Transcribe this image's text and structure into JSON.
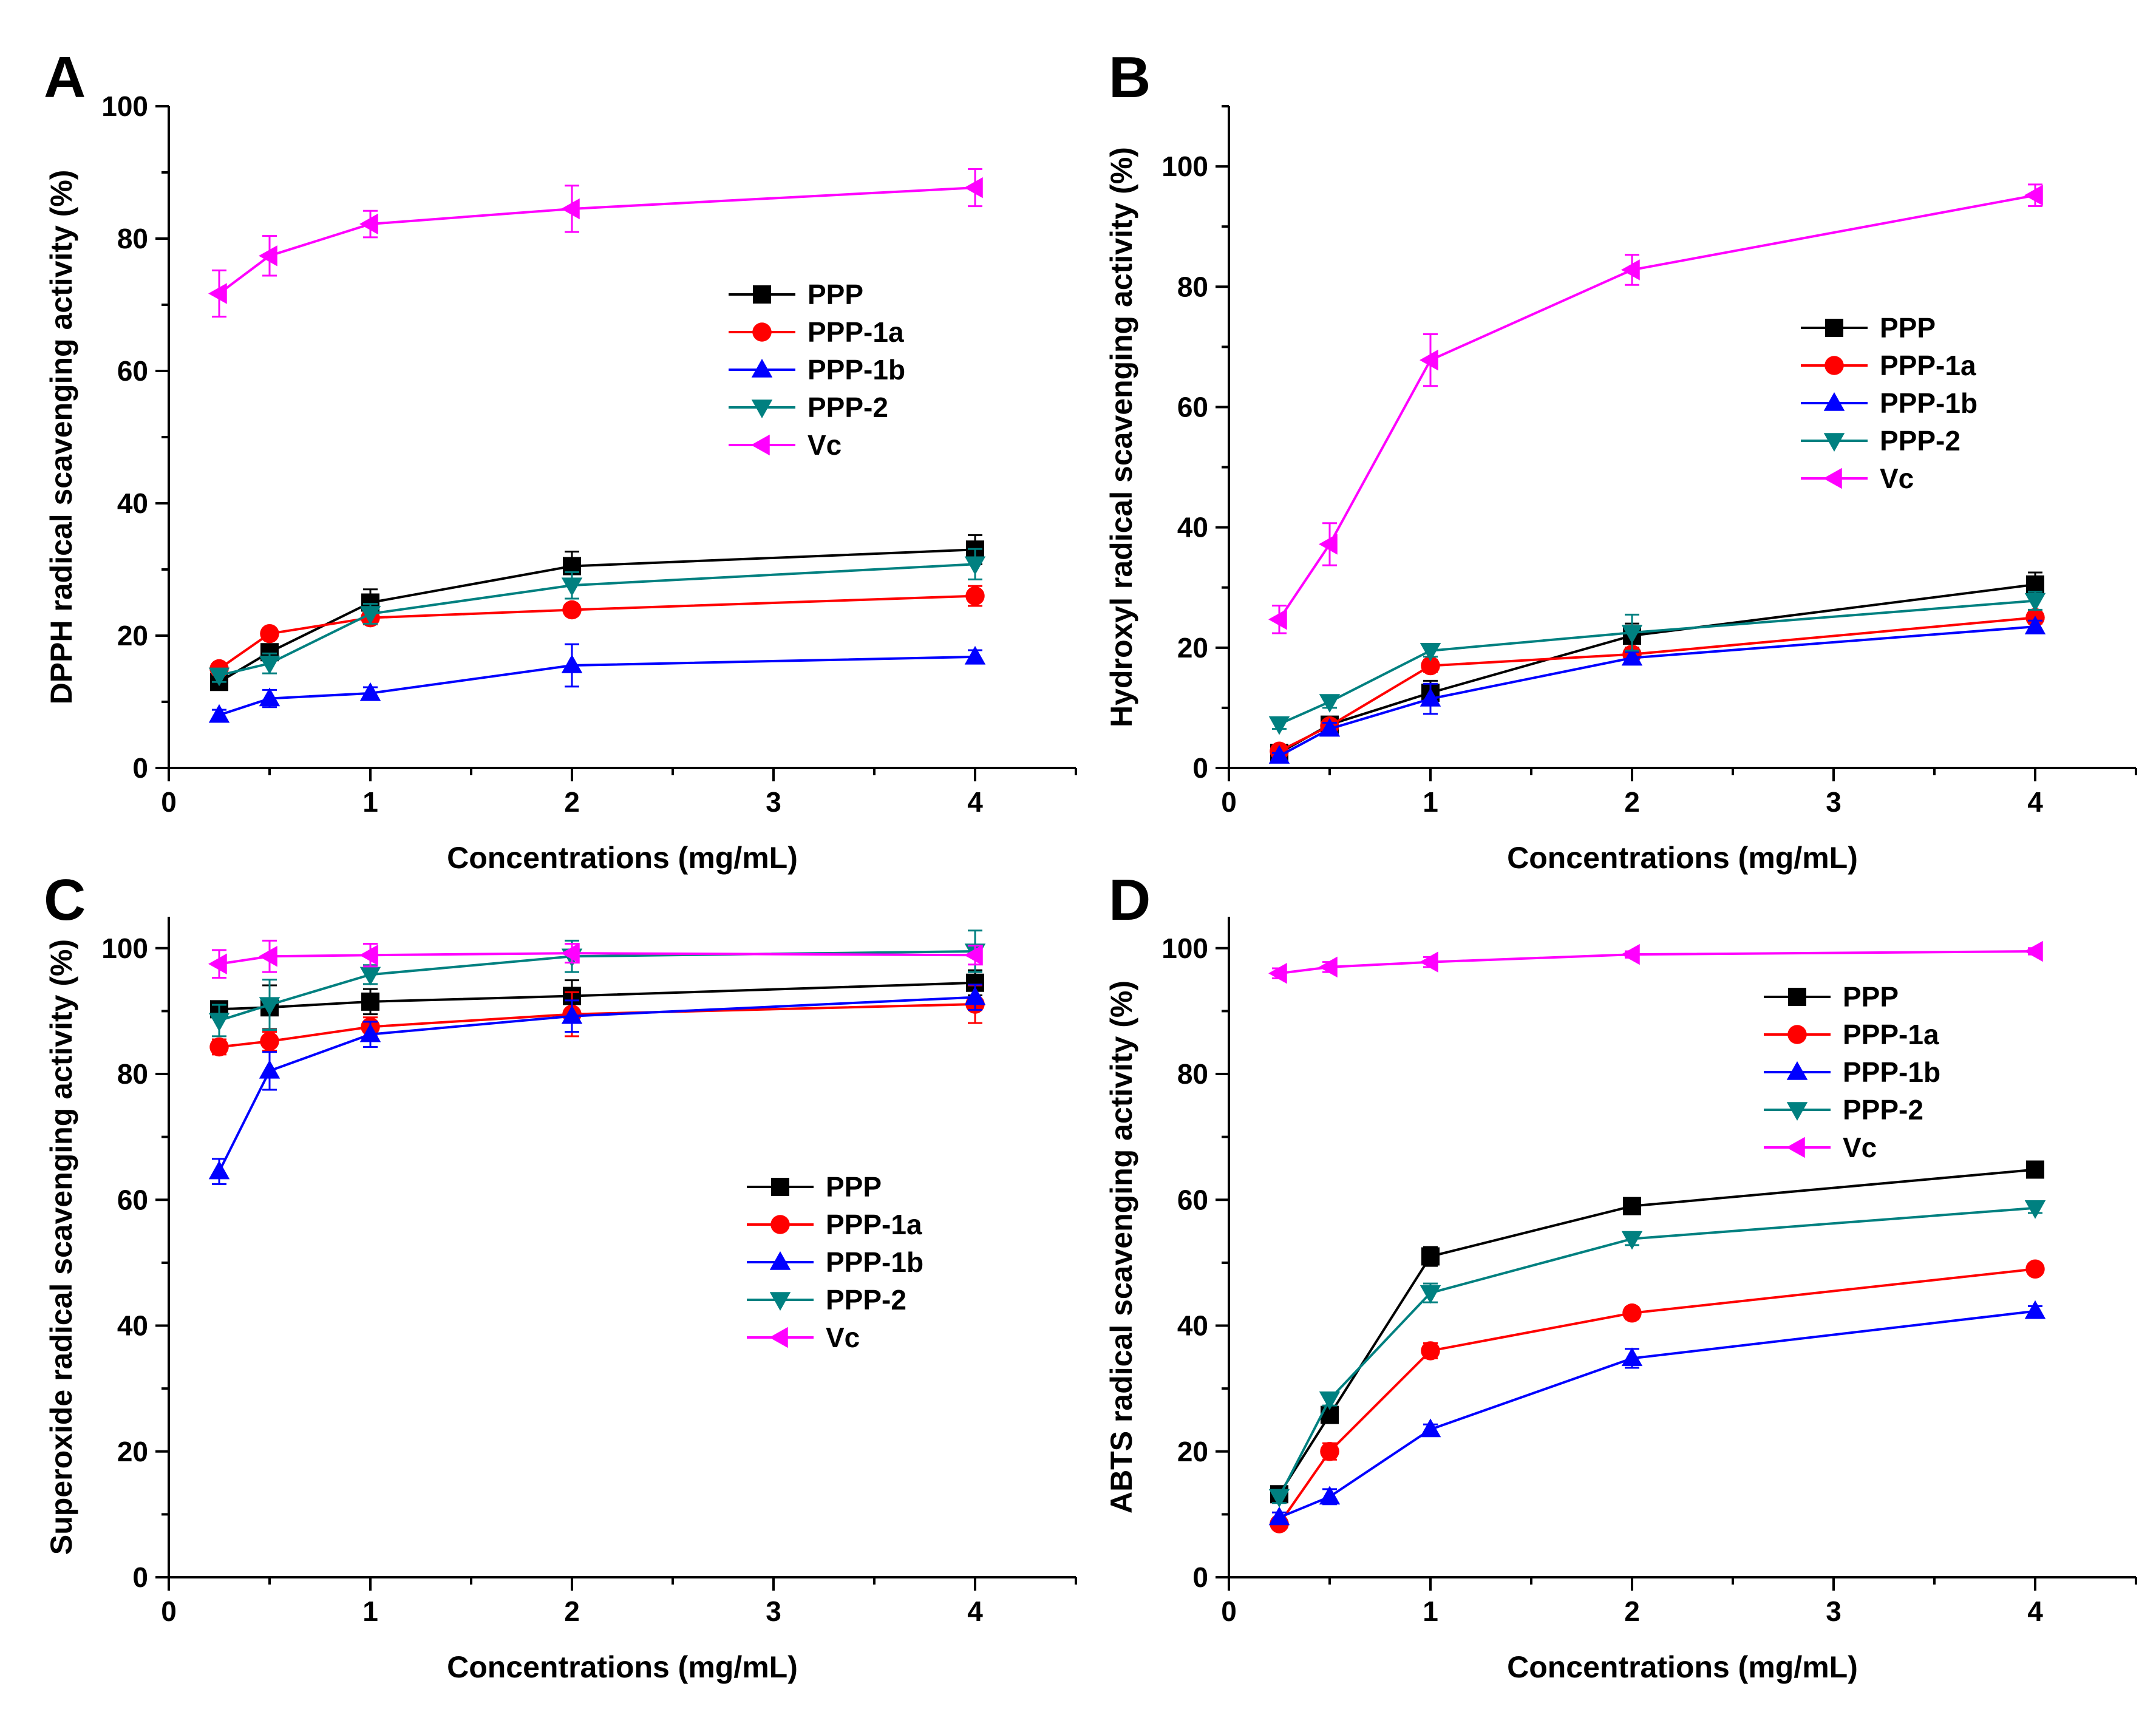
{
  "chart_data": [
    {
      "panel": "A",
      "type": "line",
      "xlabel": "Concentrations (mg/mL)",
      "ylabel": "DPPH radical scavenging activity (%)",
      "xlim": [
        0,
        4.5
      ],
      "ylim": [
        0,
        100
      ],
      "xticks": [
        0,
        1,
        2,
        3,
        4
      ],
      "yticks": [
        0,
        20,
        40,
        60,
        80,
        100
      ],
      "x": [
        0.25,
        0.5,
        1,
        2,
        4
      ],
      "legend": "center-right",
      "series": [
        {
          "name": "PPP",
          "color": "#000000",
          "marker": "square",
          "values": [
            13.0,
            17.5,
            25.0,
            30.5,
            33.0
          ],
          "errors": [
            1.0,
            1.2,
            2.0,
            2.2,
            2.2
          ]
        },
        {
          "name": "PPP-1a",
          "color": "#ff0000",
          "marker": "circle",
          "values": [
            15.0,
            20.3,
            22.7,
            23.9,
            26.0
          ],
          "errors": [
            0.8,
            0.8,
            1.0,
            0.8,
            1.5
          ]
        },
        {
          "name": "PPP-1b",
          "color": "#0000ff",
          "marker": "triangle-up",
          "values": [
            8.0,
            10.5,
            11.3,
            15.5,
            16.8
          ],
          "errors": [
            0.8,
            1.3,
            0.9,
            3.2,
            1.0
          ]
        },
        {
          "name": "PPP-2",
          "color": "#008080",
          "marker": "triangle-down",
          "values": [
            14.0,
            15.8,
            23.3,
            27.6,
            30.8
          ],
          "errors": [
            1.0,
            1.5,
            1.5,
            2.0,
            2.3
          ]
        },
        {
          "name": "Vc",
          "color": "#ff00ff",
          "marker": "triangle-left",
          "values": [
            71.7,
            77.4,
            82.2,
            84.5,
            87.7
          ],
          "errors": [
            3.5,
            3.0,
            2.0,
            3.5,
            2.8
          ]
        }
      ]
    },
    {
      "panel": "B",
      "type": "line",
      "xlabel": "Concentrations (mg/mL)",
      "ylabel": "Hydroxyl radical scavenging activity (%)",
      "xlim": [
        0,
        4.5
      ],
      "ylim": [
        0,
        110
      ],
      "xticks": [
        0,
        1,
        2,
        3,
        4
      ],
      "yticks": [
        0,
        20,
        40,
        60,
        80,
        100
      ],
      "x": [
        0.25,
        0.5,
        1,
        2,
        4
      ],
      "legend": "center-right",
      "series": [
        {
          "name": "PPP",
          "color": "#000000",
          "marker": "square",
          "values": [
            2.5,
            7.2,
            12.5,
            22.0,
            30.5
          ],
          "errors": [
            0.5,
            0.8,
            2.0,
            2.0,
            2.0
          ]
        },
        {
          "name": "PPP-1a",
          "color": "#ff0000",
          "marker": "circle",
          "values": [
            2.8,
            7.0,
            17.0,
            18.9,
            25.0
          ],
          "errors": [
            0.5,
            0.8,
            1.0,
            1.0,
            1.0
          ]
        },
        {
          "name": "PPP-1b",
          "color": "#0000ff",
          "marker": "triangle-up",
          "values": [
            2.0,
            6.5,
            11.5,
            18.3,
            23.5
          ],
          "errors": [
            0.5,
            1.0,
            2.5,
            1.0,
            1.0
          ]
        },
        {
          "name": "PPP-2",
          "color": "#008080",
          "marker": "triangle-down",
          "values": [
            7.3,
            11.0,
            19.5,
            22.5,
            27.8
          ],
          "errors": [
            0.8,
            1.0,
            1.0,
            3.0,
            1.5
          ]
        },
        {
          "name": "Vc",
          "color": "#ff00ff",
          "marker": "triangle-left",
          "values": [
            24.7,
            37.2,
            67.8,
            82.8,
            95.2
          ],
          "errors": [
            2.3,
            3.5,
            4.3,
            2.5,
            1.8
          ]
        }
      ]
    },
    {
      "panel": "C",
      "type": "line",
      "xlabel": "Concentrations (mg/mL)",
      "ylabel": "Superoxide radical scavenging activity (%)",
      "xlim": [
        0,
        4.5
      ],
      "ylim": [
        0,
        105
      ],
      "xticks": [
        0,
        1,
        2,
        3,
        4
      ],
      "yticks": [
        0,
        20,
        40,
        60,
        80,
        100
      ],
      "x": [
        0.25,
        0.5,
        1,
        2,
        4
      ],
      "legend": "center-right",
      "series": [
        {
          "name": "PPP",
          "color": "#000000",
          "marker": "square",
          "values": [
            90.3,
            90.6,
            91.5,
            92.4,
            94.5
          ],
          "errors": [
            1.0,
            3.5,
            2.0,
            2.5,
            2.0
          ]
        },
        {
          "name": "PPP-1a",
          "color": "#ff0000",
          "marker": "circle",
          "values": [
            84.3,
            85.2,
            87.5,
            89.5,
            91.1
          ],
          "errors": [
            1.2,
            1.5,
            1.5,
            3.5,
            3.0
          ]
        },
        {
          "name": "PPP-1b",
          "color": "#0000ff",
          "marker": "triangle-up",
          "values": [
            64.5,
            80.5,
            86.3,
            89.2,
            92.2
          ],
          "errors": [
            2.0,
            3.0,
            2.0,
            2.5,
            2.0
          ]
        },
        {
          "name": "PPP-2",
          "color": "#008080",
          "marker": "triangle-down",
          "values": [
            88.5,
            91.0,
            95.8,
            98.7,
            99.5
          ],
          "errors": [
            2.5,
            4.0,
            1.5,
            2.5,
            3.3
          ]
        },
        {
          "name": "Vc",
          "color": "#ff00ff",
          "marker": "triangle-left",
          "values": [
            97.5,
            98.7,
            98.9,
            99.2,
            98.9
          ],
          "errors": [
            2.2,
            2.5,
            1.8,
            1.5,
            1.5
          ]
        }
      ]
    },
    {
      "panel": "D",
      "type": "line",
      "xlabel": "Concentrations (mg/mL)",
      "ylabel": "ABTS radical scavenging activity (%)",
      "xlim": [
        0,
        4.5
      ],
      "ylim": [
        0,
        105
      ],
      "xticks": [
        0,
        1,
        2,
        3,
        4
      ],
      "yticks": [
        0,
        20,
        40,
        60,
        80,
        100
      ],
      "x": [
        0.25,
        0.5,
        1,
        2,
        4
      ],
      "legend": "center-right",
      "series": [
        {
          "name": "PPP",
          "color": "#000000",
          "marker": "square",
          "values": [
            13.2,
            25.8,
            51.0,
            59.0,
            64.8
          ],
          "errors": [
            1.0,
            1.0,
            1.5,
            1.2,
            0.8
          ]
        },
        {
          "name": "PPP-1a",
          "color": "#ff0000",
          "marker": "circle",
          "values": [
            8.5,
            20.0,
            36.0,
            42.0,
            49.0
          ],
          "errors": [
            0.8,
            1.3,
            1.2,
            1.0,
            0.8
          ]
        },
        {
          "name": "PPP-1b",
          "color": "#0000ff",
          "marker": "triangle-up",
          "values": [
            9.5,
            12.8,
            23.5,
            34.8,
            42.3
          ],
          "errors": [
            0.8,
            1.2,
            0.8,
            1.5,
            0.8
          ]
        },
        {
          "name": "PPP-2",
          "color": "#008080",
          "marker": "triangle-down",
          "values": [
            12.8,
            28.3,
            45.2,
            53.8,
            58.7
          ],
          "errors": [
            1.0,
            1.0,
            1.5,
            1.0,
            0.8
          ]
        },
        {
          "name": "Vc",
          "color": "#ff00ff",
          "marker": "triangle-left",
          "values": [
            96.0,
            97.0,
            97.8,
            99.0,
            99.5
          ],
          "errors": [
            0.8,
            0.8,
            0.8,
            0.5,
            0.5
          ]
        }
      ]
    }
  ]
}
